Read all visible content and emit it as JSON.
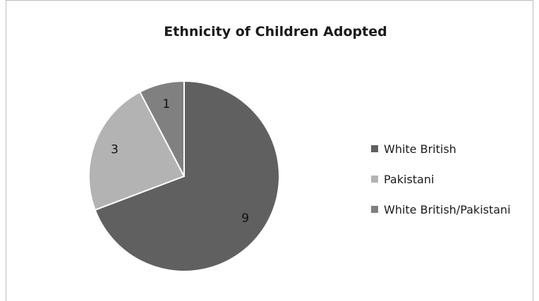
{
  "chart_data": {
    "type": "pie",
    "title": "Ethnicity of Children Adopted",
    "categories": [
      "White British",
      "Pakistani",
      "White British/Pakistani"
    ],
    "values": [
      9,
      3,
      1
    ],
    "colors": [
      "#606060",
      "#b3b3b3",
      "#808080"
    ],
    "slice_labels": [
      "9",
      "3",
      "1"
    ],
    "legend_position": "right"
  }
}
